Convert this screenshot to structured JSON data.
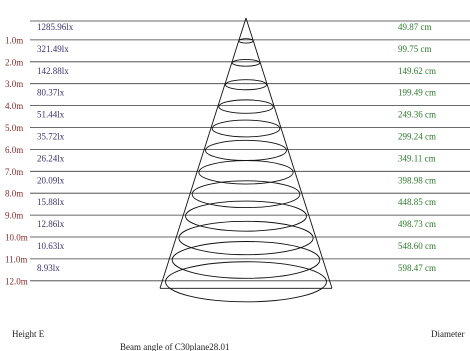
{
  "rows": [
    {
      "height": "1.0m",
      "lux": "1285.96lx",
      "diameter": "49.87 cm"
    },
    {
      "height": "2.0m",
      "lux": "321.49lx",
      "diameter": "99.75 cm"
    },
    {
      "height": "3.0m",
      "lux": "142.88lx",
      "diameter": "149.62 cm"
    },
    {
      "height": "4.0m",
      "lux": "80.37lx",
      "diameter": "199.49 cm"
    },
    {
      "height": "5.0m",
      "lux": "51.44lx",
      "diameter": "249.36 cm"
    },
    {
      "height": "6.0m",
      "lux": "35.72lx",
      "diameter": "299.24 cm"
    },
    {
      "height": "7.0m",
      "lux": "26.24lx",
      "diameter": "349.11 cm"
    },
    {
      "height": "8.0m",
      "lux": "20.09lx",
      "diameter": "398.98 cm"
    },
    {
      "height": "9.0m",
      "lux": "15.88lx",
      "diameter": "448.85 cm"
    },
    {
      "height": "10.0m",
      "lux": "12.86lx",
      "diameter": "498.73 cm"
    },
    {
      "height": "11.0m",
      "lux": "10.63lx",
      "diameter": "548.60 cm"
    },
    {
      "height": "12.0m",
      "lux": "8.93lx",
      "diameter": "598.47 cm"
    }
  ],
  "footer": {
    "left_label": "Height  E",
    "right_label": "Diameter",
    "beam_angle": "Beam angle of C30plane28.01"
  },
  "colors": {
    "height": "#8b2a2a",
    "lux": "#3a3470",
    "diameter": "#2e7a2e"
  }
}
